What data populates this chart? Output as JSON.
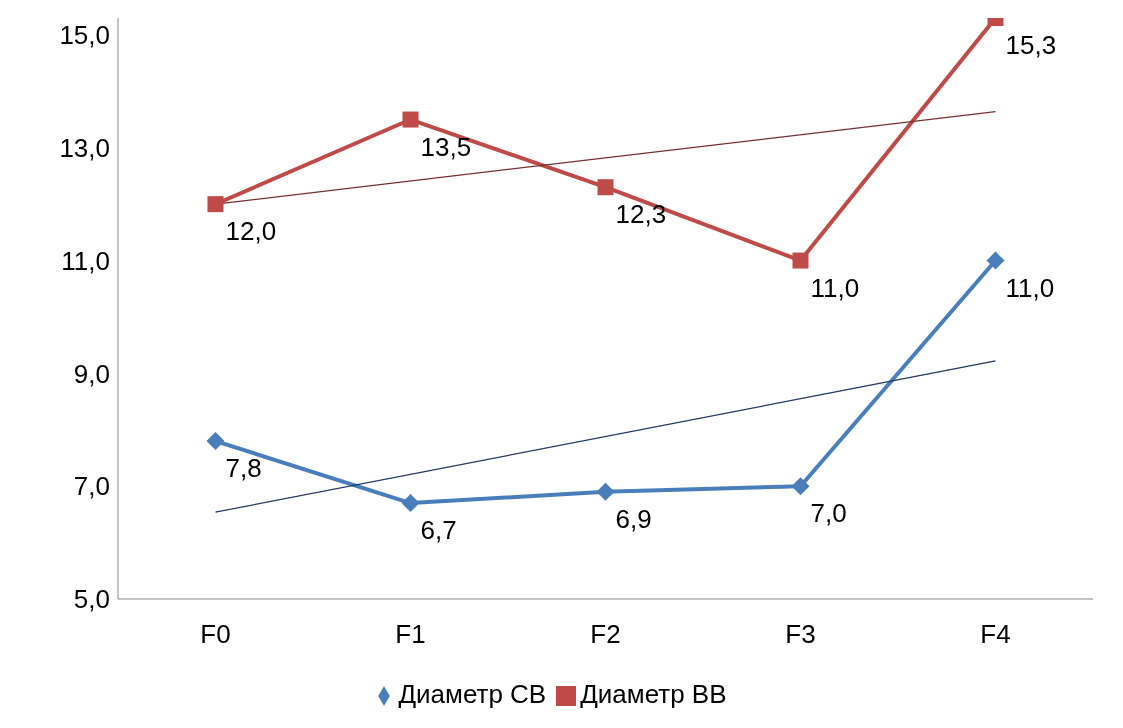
{
  "chart_data": {
    "type": "line",
    "categories": [
      "F0",
      "F1",
      "F2",
      "F3",
      "F4"
    ],
    "series": [
      {
        "name": "Диаметр СВ",
        "color": "#4a7ebb",
        "marker": "diamond",
        "values": [
          7.8,
          6.7,
          6.9,
          7.0,
          11.0
        ],
        "value_labels": [
          "7,8",
          "6,7",
          "6,9",
          "7,0",
          "11,0"
        ]
      },
      {
        "name": "Диаметр ВВ",
        "color": "#be4b48",
        "marker": "square",
        "values": [
          12.0,
          13.5,
          12.3,
          11.0,
          15.3
        ],
        "value_labels": [
          "12,0",
          "13,5",
          "12,3",
          "11,0",
          "15,3"
        ]
      },
      {
        "type": "line",
        "color": "#1f3864",
        "marker": "none",
        "x": [
          "F0",
          "F4"
        ],
        "values": [
          6.54,
          9.22
        ]
      },
      {
        "type": "line",
        "color": "#7a2f2f",
        "marker": "none",
        "x": [
          "F0",
          "F4"
        ],
        "values": [
          12.0,
          13.64
        ]
      }
    ],
    "ylim": [
      5,
      15.3
    ],
    "yticks": [
      {
        "value": 5,
        "label": "5,0"
      },
      {
        "value": 7,
        "label": "7,0"
      },
      {
        "value": 9,
        "label": "9,0"
      },
      {
        "value": 11,
        "label": "11,0"
      },
      {
        "value": 13,
        "label": "13,0"
      },
      {
        "value": 15,
        "label": "15,0"
      }
    ],
    "grid": false,
    "legend": "bottom"
  }
}
